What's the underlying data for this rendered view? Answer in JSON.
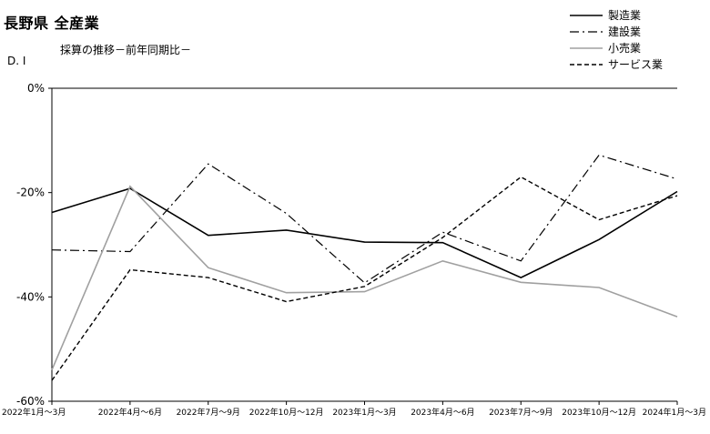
{
  "chart_data": {
    "type": "line",
    "title": "長野県 全産業",
    "subtitle": "採算の推移－前年同期比－",
    "ylabel": "D. I",
    "xlabel": "",
    "ylim": [
      -60,
      0
    ],
    "y_ticks": [
      "0%",
      "-20%",
      "-40%",
      "-60%"
    ],
    "y_tick_values": [
      0,
      -20,
      -40,
      -60
    ],
    "categories": [
      "2022年1月～3月",
      "2022年4月～6月",
      "2022年7月～9月",
      "2022年10月～12月",
      "2023年1月～3月",
      "2023年4月～6月",
      "2023年7月～9月",
      "2023年10月～12月",
      "2024年1月～3月"
    ],
    "legend_position": "top-right",
    "grid": false,
    "series": [
      {
        "name": "製造業",
        "values": [
          -23.8,
          -19.2,
          -28.2,
          -27.2,
          -29.5,
          -29.6,
          -36.3,
          -29.0,
          -19.8
        ],
        "color": "#000000",
        "dash": "solid",
        "width": 1.6
      },
      {
        "name": "建設業",
        "values": [
          -31.0,
          -31.3,
          -14.5,
          -24.0,
          -37.3,
          -27.6,
          -33.1,
          -12.8,
          -17.4
        ],
        "color": "#000000",
        "dash": "dashdot",
        "width": 1.2
      },
      {
        "name": "小売業",
        "values": [
          -54.0,
          -18.8,
          -34.4,
          -39.2,
          -39.0,
          -33.1,
          -37.2,
          -38.2,
          -43.8
        ],
        "color": "#a0a0a0",
        "dash": "solid",
        "width": 1.6
      },
      {
        "name": "サービス業",
        "values": [
          -56.0,
          -34.8,
          -36.3,
          -40.9,
          -38.0,
          -28.6,
          -17.0,
          -25.2,
          -20.6
        ],
        "color": "#000000",
        "dash": "dashed",
        "width": 1.4
      }
    ]
  }
}
